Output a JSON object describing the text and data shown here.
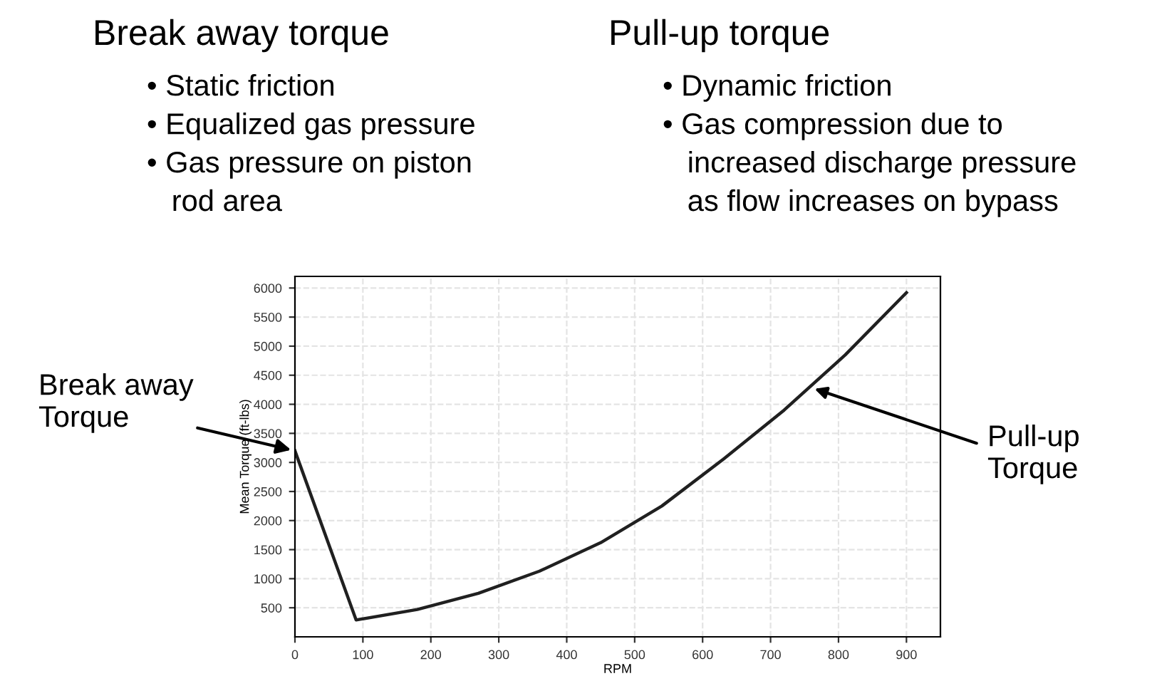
{
  "chart_data": {
    "type": "line",
    "xlabel": "RPM",
    "ylabel": "Mean Torque (ft-lbs)",
    "x": [
      0,
      90,
      180,
      270,
      360,
      450,
      540,
      630,
      720,
      810,
      900
    ],
    "series": [
      {
        "color": "#202020",
        "values": [
          3200,
          290,
          470,
          750,
          1130,
          1620,
          2250,
          3050,
          3900,
          4850,
          5920
        ]
      }
    ],
    "xlim": [
      0,
      950
    ],
    "xticks": [
      0,
      100,
      200,
      300,
      400,
      500,
      600,
      700,
      800,
      900
    ],
    "ylim": [
      0,
      6200
    ],
    "yticks": [
      500,
      1000,
      1500,
      2000,
      2500,
      3000,
      3500,
      4000,
      4500,
      5000,
      5500,
      6000
    ],
    "grid": true,
    "marker": "none",
    "line_style": "solid",
    "annotations": [
      "Break away torque",
      "• Static friction\n• Equalized gas pressure\n• Gas pressure on piston\n   rod area",
      "Pull-up torque",
      "• Dynamic friction\n• Gas compression due to\n   increased discharge pressure\n   as flow increases on bypass",
      "Pull-up\nTorque",
      {
        "text": "Break away\nTorque",
        "x": 0,
        "y": 3200
      }
    ]
  }
}
